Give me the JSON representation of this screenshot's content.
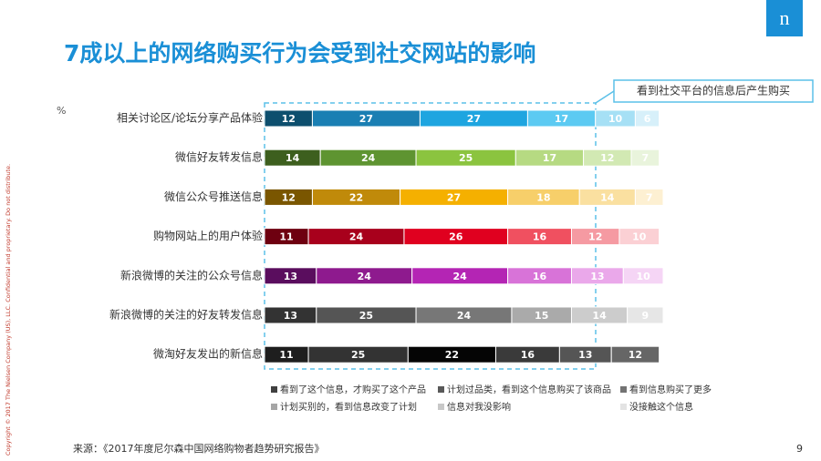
{
  "header": {
    "title": "7成以上的网络购买行为会受到社交网站的影响",
    "logo": "n"
  },
  "chart_data": {
    "type": "stacked-bar-h",
    "unit_label": "%",
    "annotation": "看到社交平台的信息后产生购买",
    "categories": [
      "相关讨论区/论坛分享产品体验",
      "微信好友转发信息",
      "微信公众号推送信息",
      "购物网站上的用户体验",
      "新浪微博的关注的公众号信息",
      "新浪微博的关注的好友转发信息",
      "微淘好友发出的新信息"
    ],
    "xlim": [
      0,
      100
    ],
    "series": [
      {
        "name": "看到了这个信息，才购买了这个产品",
        "color": "#404040",
        "values": [
          12,
          14,
          12,
          11,
          13,
          13,
          11
        ],
        "colors": [
          "#0d4f6e",
          "#3d5f1e",
          "#7a5600",
          "#6e0010",
          "#5a0d5e",
          "#333333",
          "#1e1e1e"
        ]
      },
      {
        "name": "计划过品类，看到这个信息购买了该商品",
        "color": "#595959",
        "values": [
          27,
          24,
          22,
          24,
          24,
          25,
          25
        ],
        "colors": [
          "#1a7fb3",
          "#5e9431",
          "#c08a0a",
          "#a8001c",
          "#8e1a8e",
          "#555555",
          "#333333"
        ]
      },
      {
        "name": "看到信息购买了更多",
        "color": "#737373",
        "values": [
          27,
          25,
          27,
          26,
          24,
          24,
          22
        ],
        "colors": [
          "#1ea5e0",
          "#8bc43f",
          "#f5b000",
          "#e0001f",
          "#b425b4",
          "#777777",
          "#050505"
        ]
      },
      {
        "name": "计划买别的，看到信息改变了计划",
        "color": "#a6a6a6",
        "values": [
          17,
          17,
          18,
          16,
          16,
          15,
          16
        ],
        "colors": [
          "#5ccaf2",
          "#b6da82",
          "#f7cf6a",
          "#f05060",
          "#d873d8",
          "#aaaaaa",
          "#3a3a3a"
        ]
      },
      {
        "name": "信息对我没影响",
        "color": "#c8c8c8",
        "values": [
          10,
          12,
          14,
          12,
          13,
          14,
          13
        ],
        "colors": [
          "#a6e0f5",
          "#d2e9b3",
          "#fae0a0",
          "#f59aa2",
          "#eaa8ea",
          "#cccccc",
          "#555555"
        ]
      },
      {
        "name": "没接触这个信息",
        "color": "#e3e3e3",
        "values": [
          6,
          7,
          7,
          10,
          10,
          9,
          12
        ],
        "colors": [
          "#d7f0fa",
          "#e9f4dc",
          "#fdf0d2",
          "#fbd0d4",
          "#f5d5f5",
          "#e6e6e6",
          "#666666"
        ]
      }
    ]
  },
  "footer": {
    "source": "来源：《2017年度尼尔森中国网络购物者趋势研究报告》",
    "page": "9",
    "copyright": "Copyright © 2017 The Nielsen Company (US), LLC. Confidential and proprietary. Do not distribute."
  }
}
